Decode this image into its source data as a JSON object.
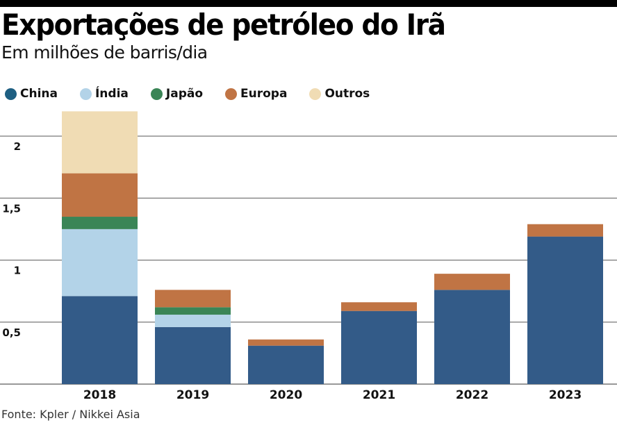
{
  "header": {
    "title": "Exportações de petróleo do Irã",
    "subtitle": "Em milhões de barris/dia"
  },
  "legend": [
    {
      "name": "China",
      "color": "#1e5f82"
    },
    {
      "name": "Índia",
      "color": "#b3d3e8"
    },
    {
      "name": "Japão",
      "color": "#3a8556"
    },
    {
      "name": "Europa",
      "color": "#c07444"
    },
    {
      "name": "Outros",
      "color": "#f0dcb4"
    }
  ],
  "source": "Fonte: Kpler / Nikkei Asia",
  "chart_data": {
    "type": "bar",
    "stacked": true,
    "title": "Exportações de petróleo do Irã",
    "subtitle": "Em milhões de barris/dia",
    "xlabel": "",
    "ylabel": "Em milhões de barris/dia",
    "categories": [
      "2018",
      "2019",
      "2020",
      "2021",
      "2022",
      "2023"
    ],
    "ylim": [
      0,
      2.2
    ],
    "yticks": [
      0.5,
      1,
      1.5,
      2
    ],
    "ytick_labels": [
      "0,5",
      "1",
      "1,5",
      "2"
    ],
    "grid": true,
    "legend_position": "top-left",
    "series": [
      {
        "name": "China",
        "color": "#335b88",
        "values": [
          0.71,
          0.46,
          0.31,
          0.59,
          0.76,
          1.19
        ]
      },
      {
        "name": "Índia",
        "color": "#b3d3e8",
        "values": [
          0.54,
          0.1,
          0,
          0,
          0,
          0
        ]
      },
      {
        "name": "Japão",
        "color": "#3a8556",
        "values": [
          0.1,
          0.06,
          0,
          0,
          0,
          0
        ]
      },
      {
        "name": "Europa",
        "color": "#c07444",
        "values": [
          0.35,
          0.14,
          0.05,
          0.07,
          0.13,
          0.1
        ]
      },
      {
        "name": "Outros",
        "color": "#f0dcb4",
        "values": [
          0.5,
          0,
          0,
          0,
          0,
          0
        ]
      }
    ]
  }
}
